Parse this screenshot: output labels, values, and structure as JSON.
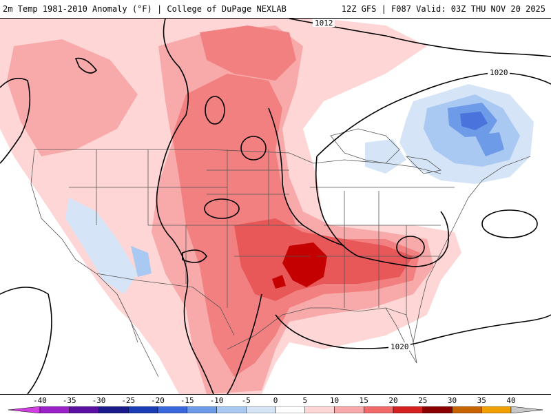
{
  "header": {
    "left_title": "2m Temp 1981-2010 Anomaly (°F) | College of DuPage NEXLAB",
    "right_title": "12Z GFS | F087 Valid: 03Z THU NOV 20 2025"
  },
  "map": {
    "contour_labels": [
      "1012",
      "1020",
      "1020"
    ],
    "anomaly_colors": {
      "neg_10": "#a9c9f2",
      "neg_15": "#6e9be8",
      "neg_20": "#4a73dc",
      "neg_5": "#d5e5f7",
      "pos_5": "#ffd6d6",
      "pos_10": "#f8a9a9",
      "pos_15": "#f28080",
      "pos_20": "#e85858",
      "pos_25": "#c40000"
    }
  },
  "colorbar": {
    "tick_labels": [
      "-40",
      "-35",
      "-30",
      "-25",
      "-20",
      "-15",
      "-10",
      "-5",
      "0",
      "5",
      "10",
      "15",
      "20",
      "25",
      "30",
      "35",
      "40"
    ],
    "colors": [
      "#d040e0",
      "#9a20c8",
      "#5a10a0",
      "#1a1a8a",
      "#1a3cb4",
      "#3a68dc",
      "#6e9be8",
      "#a9c9f2",
      "#d5e5f7",
      "#ffffff",
      "#ffd6d6",
      "#f8a9a9",
      "#f06a6a",
      "#d42020",
      "#8a0000",
      "#c86400",
      "#f0a000",
      "#f8d400",
      "#c8c8c8"
    ]
  }
}
